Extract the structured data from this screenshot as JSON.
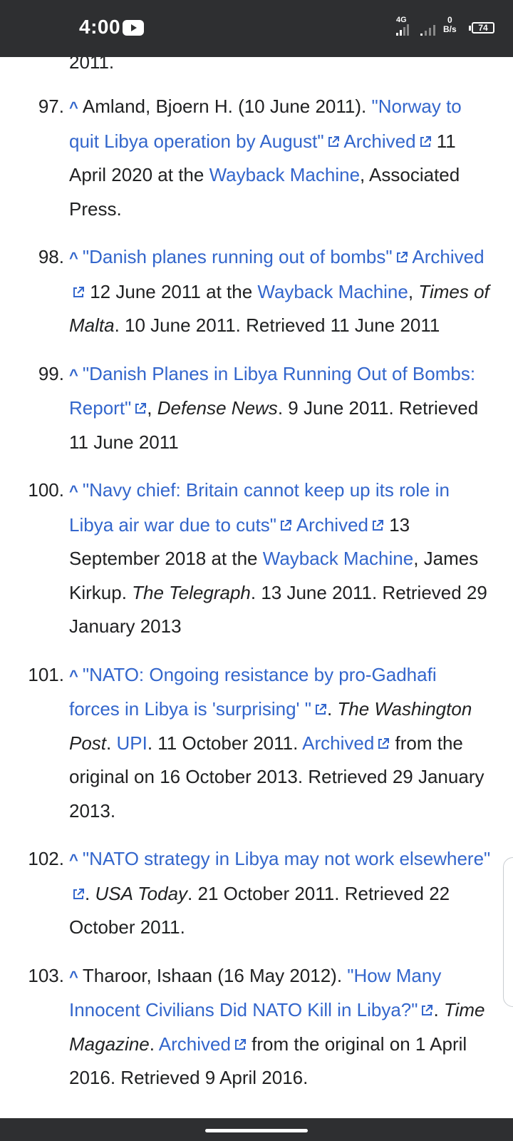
{
  "status_bar": {
    "time": "4:00",
    "network": "4G",
    "speed_value": "0",
    "speed_unit": "B/s",
    "battery": "74"
  },
  "partial_top_text": "2011.",
  "references": [
    {
      "num": "97.",
      "caret": "^",
      "parts": [
        {
          "t": "Amland, Bjoern H. (10 June 2011). "
        },
        {
          "t": "\"Norway to quit Libya operation by August\"",
          "link": true,
          "ext": true
        },
        {
          "t": " "
        },
        {
          "t": "Archived",
          "link": true,
          "ext": true
        },
        {
          "t": " 11 April 2020 at the "
        },
        {
          "t": "Wayback Machine",
          "link": true
        },
        {
          "t": ", Associated Press."
        }
      ]
    },
    {
      "num": "98.",
      "caret": "^",
      "parts": [
        {
          "t": "\"Danish planes running out of bombs\"",
          "link": true,
          "ext": true
        },
        {
          "t": " "
        },
        {
          "t": "Archived",
          "link": true,
          "ext": true
        },
        {
          "t": " 12 June 2011 at the "
        },
        {
          "t": "Wayback Machine",
          "link": true
        },
        {
          "t": ", "
        },
        {
          "t": "Times of Malta",
          "italic": true
        },
        {
          "t": ". 10 June 2011. Retrieved 11 June 2011"
        }
      ]
    },
    {
      "num": "99.",
      "caret": "^",
      "parts": [
        {
          "t": "\"Danish Planes in Libya Running Out of Bombs: Report\"",
          "link": true,
          "ext": true
        },
        {
          "t": ", "
        },
        {
          "t": "Defense News",
          "italic": true
        },
        {
          "t": ". 9 June 2011. Retrieved 11 June 2011"
        }
      ]
    },
    {
      "num": "100.",
      "caret": "^",
      "parts": [
        {
          "t": "\"Navy chief: Britain cannot keep up its role in Libya air war due to cuts\"",
          "link": true,
          "ext": true
        },
        {
          "t": " "
        },
        {
          "t": "Archived",
          "link": true,
          "ext": true
        },
        {
          "t": " 13 September 2018 at the "
        },
        {
          "t": "Wayback Machine",
          "link": true
        },
        {
          "t": ", James Kirkup. "
        },
        {
          "t": "The Telegraph",
          "italic": true
        },
        {
          "t": ". 13 June 2011. Retrieved 29 January 2013"
        }
      ]
    },
    {
      "num": "101.",
      "caret": "^",
      "parts": [
        {
          "t": "\"NATO: Ongoing resistance by pro-Gadhafi forces in Libya is 'surprising' \"",
          "link": true,
          "ext": true
        },
        {
          "t": ". "
        },
        {
          "t": "The Washington Post",
          "italic": true
        },
        {
          "t": ". "
        },
        {
          "t": "UPI",
          "link": true
        },
        {
          "t": ". 11 October 2011. "
        },
        {
          "t": "Archived",
          "link": true,
          "ext": true
        },
        {
          "t": " from the original on 16 October 2013. Retrieved 29 January 2013."
        }
      ]
    },
    {
      "num": "102.",
      "caret": "^",
      "parts": [
        {
          "t": "\"NATO strategy in Libya may not work elsewhere\"",
          "link": true,
          "ext": true
        },
        {
          "t": ". "
        },
        {
          "t": "USA Today",
          "italic": true
        },
        {
          "t": ". 21 October 2011. Retrieved 22 October 2011."
        }
      ]
    },
    {
      "num": "103.",
      "caret": "^",
      "parts": [
        {
          "t": "Tharoor, Ishaan (16 May 2012). "
        },
        {
          "t": "\"How Many Innocent Civilians Did NATO Kill in Libya?\"",
          "link": true,
          "ext": true
        },
        {
          "t": ". "
        },
        {
          "t": "Time Magazine",
          "italic": true
        },
        {
          "t": ". "
        },
        {
          "t": "Archived",
          "link": true,
          "ext": true
        },
        {
          "t": " from the original on 1 April 2016. Retrieved 9 April 2016."
        }
      ]
    }
  ],
  "colors": {
    "link": "#3366cc",
    "text": "#202122",
    "status_bar_bg": "#2e2f31"
  },
  "icons": {
    "external_link": "external-link-icon",
    "youtube": "youtube-icon",
    "battery": "battery-icon",
    "signal": "signal-icon"
  }
}
